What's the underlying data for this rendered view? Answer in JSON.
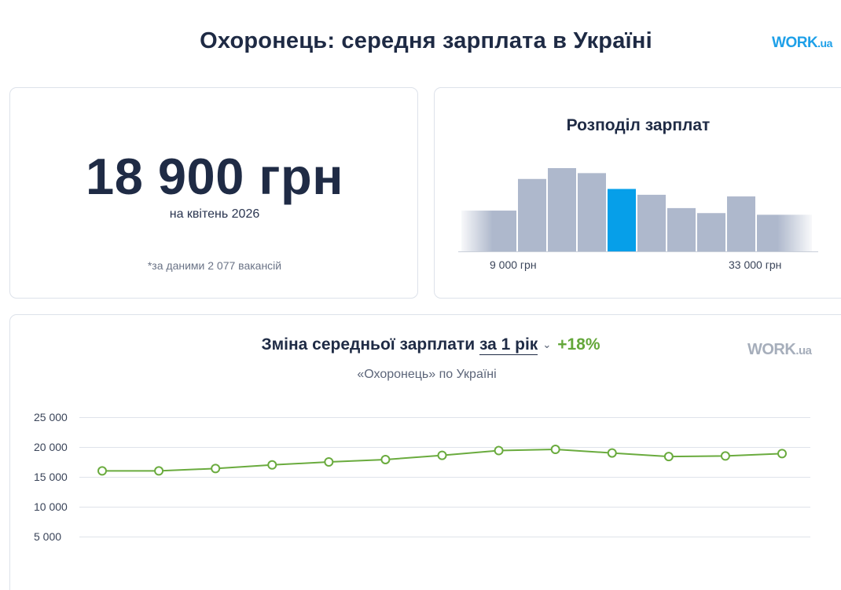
{
  "page": {
    "title": "Охоронець: середня зарплата в Україні",
    "brand_prefix": "W",
    "brand_o": "O",
    "brand_rest": "RK",
    "brand_suffix": ".ua"
  },
  "summary": {
    "salary": "18 900 грн",
    "date": "на квітень 2026",
    "note": "*за даними 2 077 вакансій"
  },
  "distribution": {
    "title": "Розподіл зарплат",
    "min_label": "9 000 грн",
    "max_label": "33 000 грн",
    "bars": [
      0.49,
      0.87,
      1.0,
      0.94,
      0.75,
      0.68,
      0.52,
      0.46,
      0.66,
      0.44
    ],
    "highlight_index": 4,
    "colors": {
      "bar": "#aeb8cc",
      "highlight": "#069fe9"
    }
  },
  "trend": {
    "heading_prefix": "Зміна середньої зарплати",
    "period": "за 1 рік",
    "growth": "+18%",
    "subtitle": "«Охоронець» по Україні",
    "brand": "WORK",
    "brand_suffix": ".ua"
  },
  "chart_data": {
    "type": "line",
    "title": "Зміна середньої зарплати за 1 рік",
    "subtitle": "«Охоронець» по Україні",
    "y_ticks": [
      "25 000",
      "20 000",
      "15 000",
      "10 000",
      "5 000"
    ],
    "ylim": [
      0,
      25000
    ],
    "grid": true,
    "series": [
      {
        "values": [
          16000,
          16000,
          16400,
          17000,
          17500,
          17900,
          18600,
          19400,
          19600,
          19000,
          18400,
          18500,
          18900
        ],
        "color": "#6aab3e"
      }
    ]
  }
}
